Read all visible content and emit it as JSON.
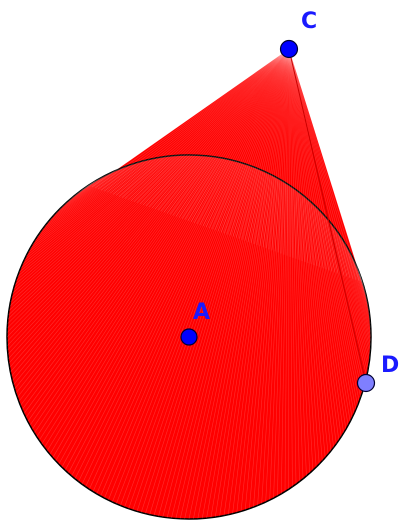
{
  "figure": {
    "points": {
      "A": {
        "label": "A",
        "color": "#0000ff"
      },
      "C": {
        "label": "C",
        "color": "#0000ff"
      },
      "D": {
        "label": "D",
        "color": "#7f7fff"
      }
    },
    "fill_color": "#ff0000",
    "stroke_color": "#000000",
    "label_color": "#1a1aff"
  }
}
